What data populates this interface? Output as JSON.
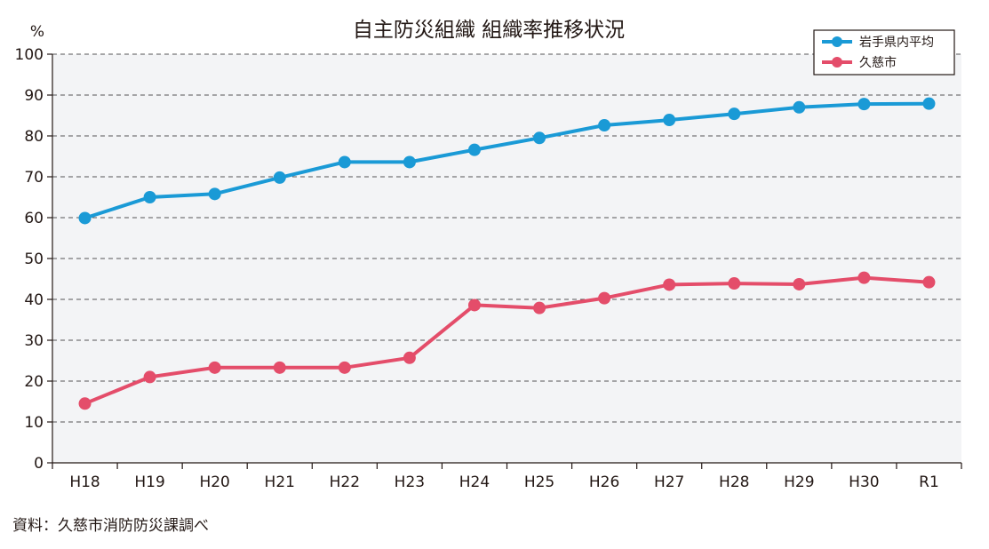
{
  "chart_data": {
    "type": "line",
    "title": "自主防災組織 組織率推移状況",
    "ylabel": "%",
    "xlabel": "",
    "ylim": [
      0,
      100
    ],
    "yticks": [
      0,
      10,
      20,
      30,
      40,
      50,
      60,
      70,
      80,
      90,
      100
    ],
    "categories": [
      "H18",
      "H19",
      "H20",
      "H21",
      "H22",
      "H23",
      "H24",
      "H25",
      "H26",
      "H27",
      "H28",
      "H29",
      "H30",
      "R1"
    ],
    "grid": "horizontal dashed",
    "legend_position": "top-right",
    "series": [
      {
        "name": "岩手県内平均",
        "color": "#1a9ad6",
        "values": [
          59.9,
          65.0,
          65.8,
          69.8,
          73.6,
          73.6,
          76.6,
          79.5,
          82.6,
          83.9,
          85.4,
          87.0,
          87.8,
          87.9
        ]
      },
      {
        "name": "久慈市",
        "color": "#e44d6a",
        "values": [
          14.5,
          21.0,
          23.3,
          23.3,
          23.3,
          25.7,
          38.6,
          37.9,
          40.3,
          43.6,
          43.9,
          43.7,
          45.3,
          44.2
        ]
      }
    ]
  },
  "source": "資料：久慈市消防防災課調べ",
  "colors": {
    "plot_background": "#f3f4f6",
    "axis": "#231815",
    "grid": "#555555"
  }
}
